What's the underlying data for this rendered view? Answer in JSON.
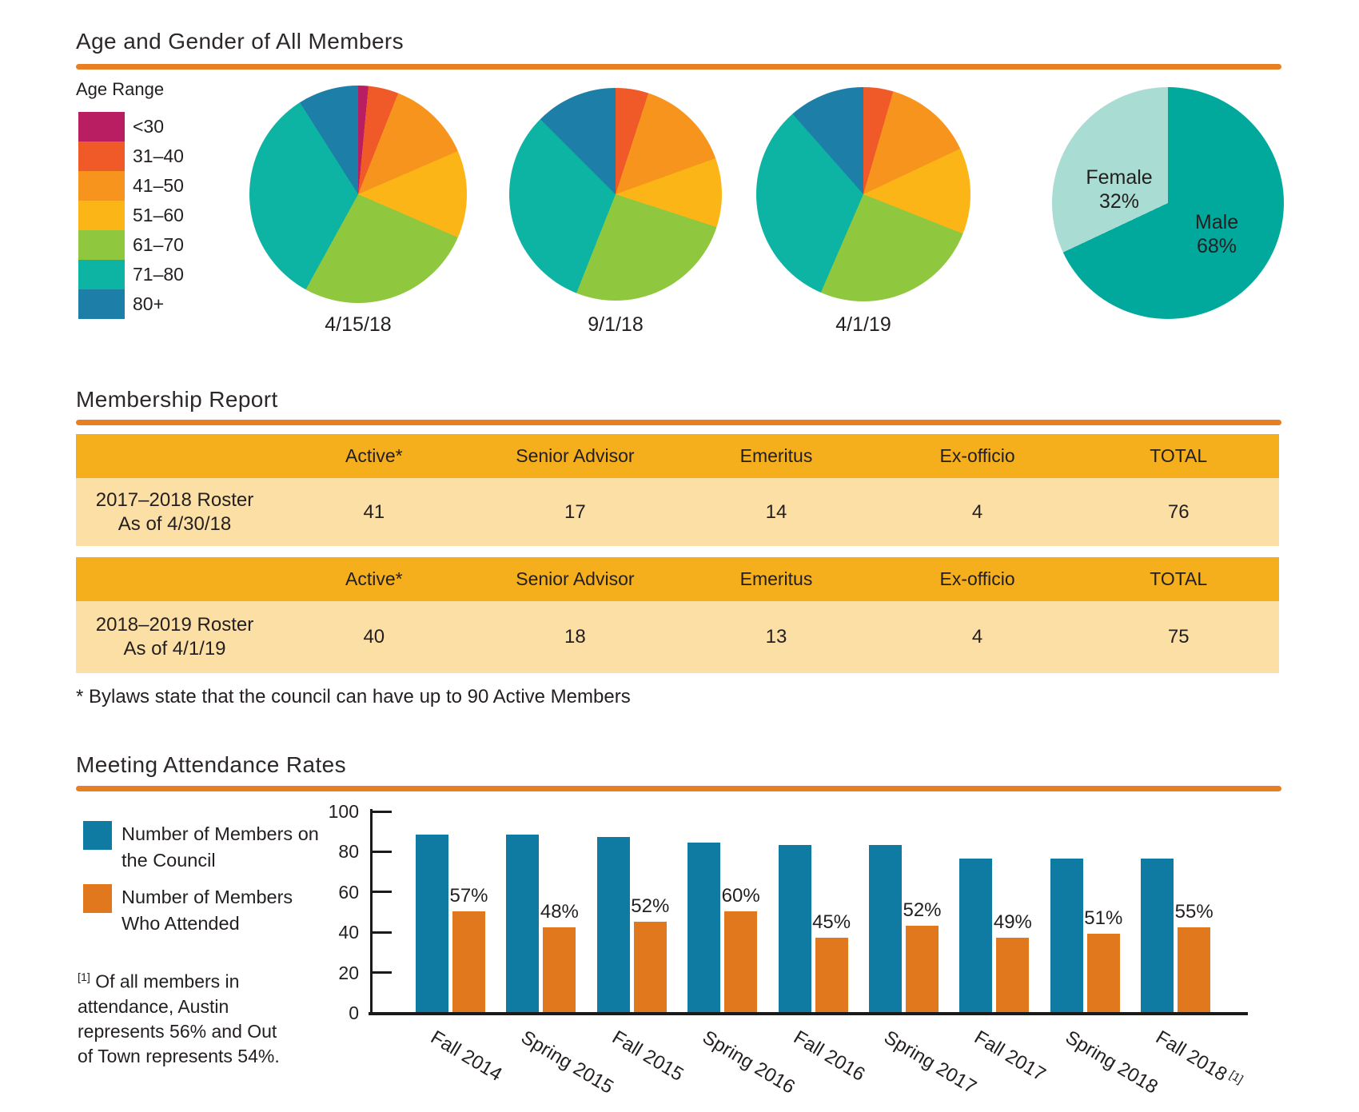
{
  "colors": {
    "accent_rule": "#e87f22",
    "text": "#231f20",
    "age_range_colors": [
      "#b91e62",
      "#f05a28",
      "#f7941e",
      "#fbb516",
      "#8fc73e",
      "#0db3a3",
      "#1d7fa8"
    ],
    "male": "#00a99c",
    "female": "#a9dcd2",
    "table_header": "#f5ae1c",
    "table_row": "#fbdfa4",
    "bar_council": "#0f7ba3",
    "bar_attended": "#e2781e"
  },
  "age_gender": {
    "title": "Age and Gender of All Members",
    "legend_title": "Age Range",
    "categories": [
      {
        "label": "<30",
        "color": "#b91e62"
      },
      {
        "label": "31–40",
        "color": "#f05a28"
      },
      {
        "label": "41–50",
        "color": "#f7941e"
      },
      {
        "label": "51–60",
        "color": "#fbb516"
      },
      {
        "label": "61–70",
        "color": "#8fc73e"
      },
      {
        "label": "71–80",
        "color": "#0db3a3"
      },
      {
        "label": "80+",
        "color": "#1d7fa8"
      }
    ],
    "gender": {
      "female_label": "Female",
      "female_pct": "32%",
      "male_label": "Male",
      "male_pct": "68%"
    }
  },
  "membership_report": {
    "title": "Membership Report",
    "columns": [
      "Active*",
      "Senior Advisor",
      "Emeritus",
      "Ex-officio",
      "TOTAL"
    ],
    "rows": [
      {
        "label_lines": [
          "2017–2018 Roster",
          "As of 4/30/18"
        ],
        "values": [
          "41",
          "17",
          "14",
          "4",
          "76"
        ]
      },
      {
        "label_lines": [
          "2018–2019 Roster",
          "As of 4/1/19"
        ],
        "values": [
          "40",
          "18",
          "13",
          "4",
          "75"
        ]
      }
    ],
    "footnote": "* Bylaws state that the council can have up to 90 Active Members"
  },
  "attendance": {
    "title": "Meeting Attendance Rates",
    "legend": [
      {
        "line1": "Number of Members on",
        "line2": "the Council",
        "color": "#0f7ba3"
      },
      {
        "line1": "Number of Members",
        "line2": "Who Attended",
        "color": "#e2781e"
      }
    ],
    "footnote_marker": "[1]",
    "footnote": "Of all members in attendance, Austin represents 56% and Out of Town represents 54%."
  },
  "chart_data": [
    {
      "type": "pie",
      "title": "4/15/18",
      "categories": [
        "<30",
        "31–40",
        "41–50",
        "51–60",
        "61–70",
        "71–80",
        "80+"
      ],
      "values_pct": [
        1.5,
        4.5,
        12.5,
        13,
        26.5,
        33,
        9
      ]
    },
    {
      "type": "pie",
      "title": "9/1/18",
      "categories": [
        "<30",
        "31–40",
        "41–50",
        "51–60",
        "61–70",
        "71–80",
        "80+"
      ],
      "values_pct": [
        0,
        5,
        14.5,
        10.5,
        26,
        31.5,
        12.5
      ]
    },
    {
      "type": "pie",
      "title": "4/1/19",
      "categories": [
        "<30",
        "31–40",
        "41–50",
        "51–60",
        "61–70",
        "71–80",
        "80+"
      ],
      "values_pct": [
        0,
        4.5,
        13.5,
        13,
        25.5,
        32,
        11.5
      ]
    },
    {
      "type": "pie",
      "title": "Gender of All Members",
      "categories": [
        "Male",
        "Female"
      ],
      "values_pct": [
        68,
        32
      ]
    },
    {
      "type": "bar",
      "title": "Meeting Attendance Rates",
      "categories": [
        "Fall 2014",
        "Spring 2015",
        "Fall 2015",
        "Spring 2016",
        "Fall 2016",
        "Spring 2017",
        "Fall 2017",
        "Spring 2018",
        "Fall 2018"
      ],
      "last_category_sup": "[1]",
      "series": [
        {
          "name": "Number of Members on the Council",
          "values": [
            88,
            88,
            87,
            84,
            83,
            83,
            76,
            76,
            76
          ]
        },
        {
          "name": "Number of Members Who Attended",
          "values": [
            50,
            42,
            45,
            50,
            37,
            43,
            37,
            39,
            42
          ]
        }
      ],
      "pct_labels": [
        "57%",
        "48%",
        "52%",
        "60%",
        "45%",
        "52%",
        "49%",
        "51%",
        "55%"
      ],
      "ylim": [
        0,
        100
      ],
      "yticks": [
        100,
        80,
        60,
        40,
        20,
        0
      ],
      "legend_position": "left"
    },
    {
      "type": "table",
      "title": "Membership Report",
      "columns": [
        "",
        "Active*",
        "Senior Advisor",
        "Emeritus",
        "Ex-officio",
        "TOTAL"
      ],
      "rows": [
        [
          "2017–2018 Roster As of 4/30/18",
          "41",
          "17",
          "14",
          "4",
          "76"
        ],
        [
          "2018–2019 Roster As of 4/1/19",
          "40",
          "18",
          "13",
          "4",
          "75"
        ]
      ]
    }
  ]
}
